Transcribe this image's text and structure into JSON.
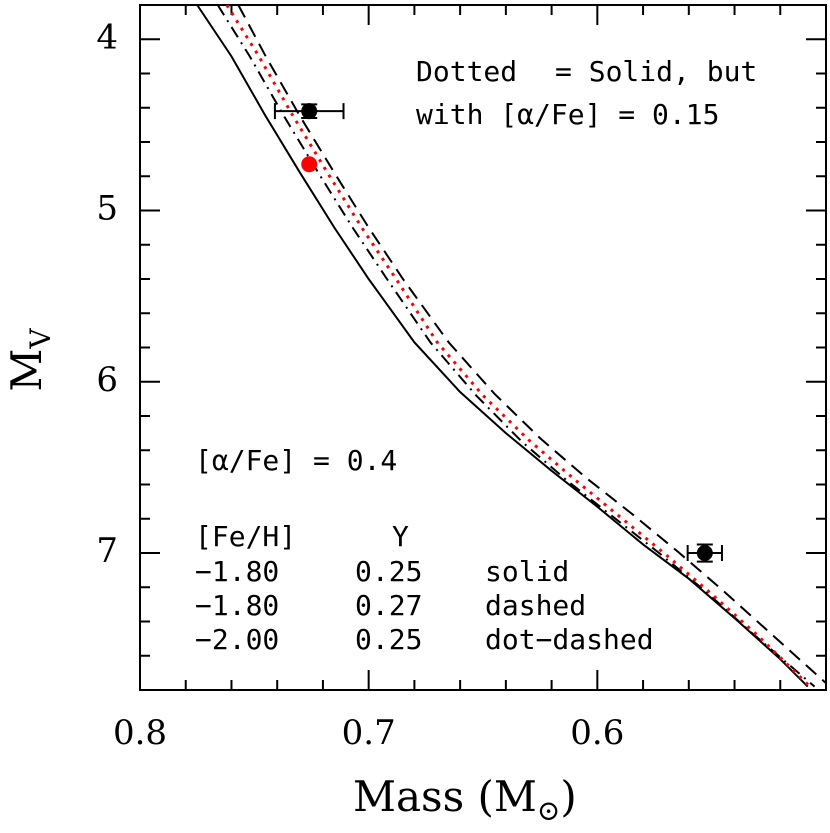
{
  "chart_data": {
    "type": "line",
    "xlabel": [
      "Mass (M",
      "⊙",
      ")"
    ],
    "ylabel": [
      "M",
      "V"
    ],
    "xlim": [
      0.8,
      0.5
    ],
    "ylim": [
      3.8,
      7.8
    ],
    "xticks": [
      {
        "value": 0.8,
        "label": "0.8"
      },
      0.7,
      0.6
    ],
    "yticks": [
      4,
      5,
      6,
      7
    ],
    "xminor": [
      0.78,
      0.76,
      0.74,
      0.72,
      0.68,
      0.66,
      0.64,
      0.62,
      0.58,
      0.56,
      0.54,
      0.52
    ],
    "yminor": [
      4.2,
      4.4,
      4.6,
      4.8,
      5.2,
      5.4,
      5.6,
      5.8,
      6.2,
      6.4,
      6.6,
      6.8,
      7.2,
      7.4,
      7.6
    ],
    "series": [
      {
        "style": "solid",
        "color": "#000000",
        "x": [
          0.775,
          0.76,
          0.745,
          0.73,
          0.715,
          0.7,
          0.68,
          0.66,
          0.64,
          0.62,
          0.6,
          0.58,
          0.56,
          0.54,
          0.52,
          0.508
        ],
        "values": [
          3.8,
          4.1,
          4.45,
          4.78,
          5.1,
          5.4,
          5.77,
          6.06,
          6.3,
          6.52,
          6.73,
          6.95,
          7.15,
          7.38,
          7.62,
          7.78
        ]
      },
      {
        "style": "dashed",
        "color": "#000000",
        "x": [
          0.757,
          0.745,
          0.73,
          0.715,
          0.7,
          0.685,
          0.665,
          0.645,
          0.625,
          0.605,
          0.585,
          0.565,
          0.545,
          0.525,
          0.5
        ],
        "values": [
          3.8,
          4.1,
          4.45,
          4.78,
          5.1,
          5.4,
          5.77,
          6.07,
          6.33,
          6.56,
          6.77,
          6.99,
          7.22,
          7.46,
          7.76
        ]
      },
      {
        "style": "dotdash",
        "color": "#000000",
        "x": [
          0.766,
          0.752,
          0.737,
          0.722,
          0.707,
          0.692,
          0.673,
          0.653,
          0.633,
          0.613,
          0.593,
          0.573,
          0.553,
          0.533,
          0.505
        ],
        "values": [
          3.8,
          4.1,
          4.45,
          4.78,
          5.1,
          5.4,
          5.77,
          6.08,
          6.35,
          6.58,
          6.79,
          7.0,
          7.22,
          7.46,
          7.78
        ]
      },
      {
        "style": "dotted",
        "color": "#ff0000",
        "x": [
          0.762,
          0.748,
          0.733,
          0.718,
          0.703,
          0.688,
          0.67,
          0.65,
          0.63,
          0.61,
          0.59,
          0.57,
          0.55,
          0.53,
          0.507
        ],
        "values": [
          3.8,
          4.1,
          4.45,
          4.78,
          5.1,
          5.4,
          5.77,
          6.08,
          6.34,
          6.57,
          6.79,
          7.01,
          7.24,
          7.48,
          7.78
        ]
      }
    ],
    "points": [
      {
        "x": 0.726,
        "y": 4.42,
        "xerr": 0.015,
        "yerr": 0.04,
        "color": "#000000"
      },
      {
        "x": 0.726,
        "y": 4.73,
        "color": "#ff0000"
      },
      {
        "x": 0.553,
        "y": 7.0,
        "xerr": 0.0075,
        "yerr": 0.05,
        "color": "#000000"
      }
    ],
    "annotations": {
      "dotted_word": "Dotted",
      "dotted_color": "#ff0000",
      "line1_rest": "= Solid, but",
      "line2": "with [α/Fe] = 0.15",
      "alpha": "[α/Fe] = 0.4"
    },
    "legend_table": {
      "header": [
        "[Fe/H]",
        "Y"
      ],
      "rows": [
        [
          "−1.80",
          "0.25",
          "solid"
        ],
        [
          "−1.80",
          "0.27",
          "dashed"
        ],
        [
          "−2.00",
          "0.25",
          "dot−dashed"
        ]
      ]
    }
  }
}
